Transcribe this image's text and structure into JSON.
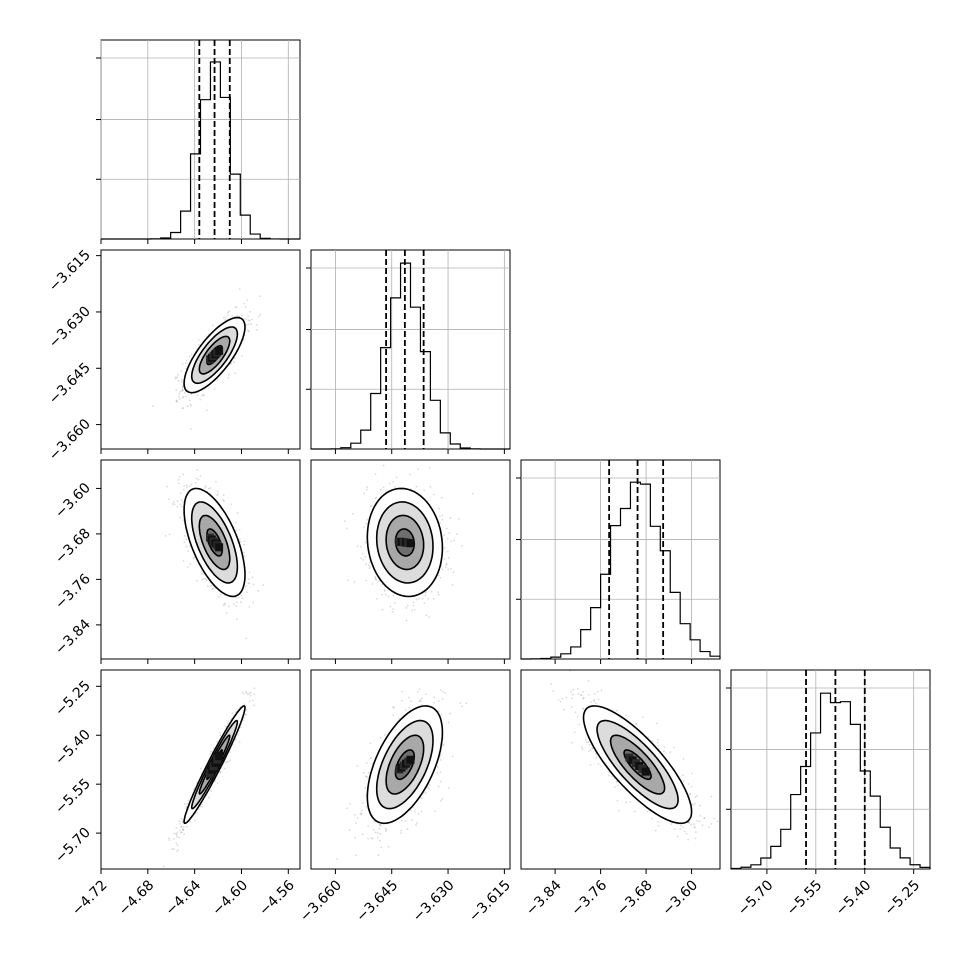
{
  "chart_data": {
    "type": "corner",
    "grid": true,
    "quantiles_shown": [
      0.16,
      0.5,
      0.84
    ],
    "colors": {
      "ink": "#000000",
      "grid": "#b0b0b0",
      "scatter": "#7f7f7f",
      "background": "#ffffff"
    },
    "parameters": [
      {
        "median": -4.623,
        "q16": -4.636,
        "q84": -4.61,
        "range": [
          -4.72,
          -4.55
        ],
        "ticks": [
          "−4.72",
          "−4.68",
          "−4.64",
          "−4.60",
          "−4.56"
        ],
        "tick_values": [
          -4.72,
          -4.68,
          -4.64,
          -4.6,
          -4.56
        ],
        "hist_peak": 1.0
      },
      {
        "median": -3.6415,
        "q16": -3.6465,
        "q84": -3.6365,
        "range": [
          -3.6665,
          -3.6135
        ],
        "ticks": [
          "−3.660",
          "−3.645",
          "−3.630",
          "−3.615"
        ],
        "tick_values": [
          -3.66,
          -3.645,
          -3.63,
          -3.615
        ],
        "hist_peak": 1.0
      },
      {
        "median": -3.695,
        "q16": -3.745,
        "q84": -3.65,
        "range": [
          -3.9,
          -3.55
        ],
        "ticks": [
          "−3.84",
          "−3.76",
          "−3.68",
          "−3.60"
        ],
        "tick_values": [
          -3.84,
          -3.76,
          -3.68,
          -3.6
        ],
        "hist_peak": 1.0
      },
      {
        "median": -5.49,
        "q16": -5.58,
        "q84": -5.4,
        "range": [
          -5.81,
          -5.2
        ],
        "ticks": [
          "−5.70",
          "−5.55",
          "−5.40",
          "−5.25"
        ],
        "tick_values": [
          -5.7,
          -5.55,
          -5.4,
          -5.25
        ],
        "hist_peak": 1.0
      }
    ],
    "y_tick_labels": {
      "row1": [
        "−3.615",
        "−3.630",
        "−3.645",
        "−3.660"
      ],
      "row2": [
        "−3.60",
        "−3.68",
        "−3.76",
        "−3.84"
      ],
      "row3": [
        "−5.25",
        "−5.40",
        "−5.55",
        "−5.70"
      ]
    },
    "correlations": {
      "1,0": 0.75,
      "2,0": -0.6,
      "2,1": -0.1,
      "3,0": 0.97,
      "3,1": 0.55,
      "3,2": -0.8
    },
    "contour_levels_sigma": [
      0.5,
      1.0,
      1.5,
      2.0
    ]
  }
}
